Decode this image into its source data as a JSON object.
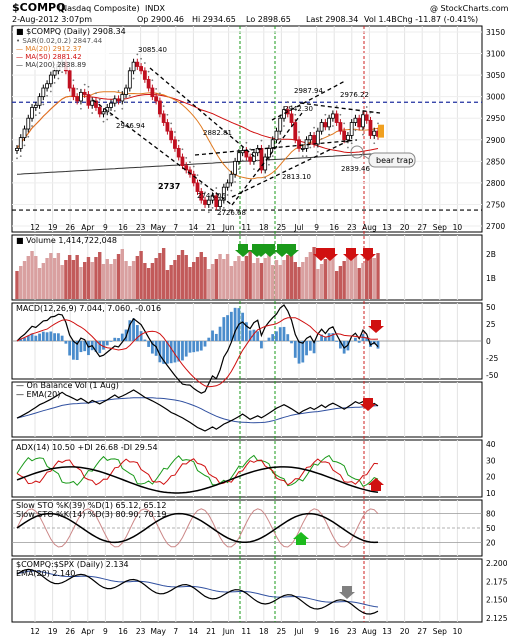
{
  "header": {
    "symbol": "$COMPQ",
    "name": "(Nasdaq Composite)",
    "exchange": "INDX",
    "brand": "@ StockCharts.com",
    "date": "2-Aug-2012 3:07pm",
    "open": "Op 2900.46",
    "high": "Hi 2934.65",
    "low": "Lo 2898.65",
    "last": "Last 2908.34",
    "volume": "Vol 1.4B",
    "change": "Chg -11.87 (-0.41%)",
    "change_color": "#d01010"
  },
  "price_legend": [
    {
      "text": "■ $COMPQ (Daily) 2908.34",
      "color": "#000000"
    },
    {
      "text": "• SAR(0.02,0.2) 2847.44",
      "color": "#555555"
    },
    {
      "text": "— MA(20) 2912.37",
      "color": "#e07a20"
    },
    {
      "text": "— MA(50) 2881.42",
      "color": "#d01010"
    },
    {
      "text": "— MA(200) 2838.89",
      "color": "#333333"
    }
  ],
  "annotations": {
    "peaks": [
      "3085.40",
      "2946.94",
      "2882.81",
      "2737",
      "2744.06",
      "2726.68",
      "2942.30",
      "2987.94",
      "2976.22",
      "2839.46",
      "2813.10"
    ],
    "bear_trap": "bear trap"
  },
  "volume_legend": "■ Volume 1,414,722,048",
  "macd_legend": "MACD(12,26,9) 7.044, 7.060, -0.016",
  "obv_legend": {
    "line1": "— On Balance Vol (1 Aug)",
    "line2": "— EMA(20)"
  },
  "adx_legend": "ADX(14) 10.50 +DI 26.68 -DI 29.54",
  "sto_legend": {
    "line1": "Slow STO %K(39) %D(1) 65.12, 65.12",
    "line2": "Slow STO %K(14) %D(3) 80.90, 70.19"
  },
  "ratio_legend": {
    "line1": "$COMPQ:$SPX (Daily) 2.134",
    "line2": "EMA(20) 2.140"
  },
  "x_axis": {
    "top": [
      "12",
      "19",
      "26",
      "Apr",
      "9",
      "16",
      "23",
      "May",
      "7",
      "14",
      "21",
      "Jun",
      "11",
      "18",
      "25",
      "Jul",
      "9",
      "16",
      "23",
      "Aug",
      "13",
      "20",
      "27",
      "Sep",
      "10"
    ],
    "bottom": [
      "12",
      "19",
      "26",
      "Apr",
      "9",
      "16",
      "23",
      "May",
      "7",
      "14",
      "21",
      "Jun",
      "11",
      "18",
      "25",
      "Jul",
      "9",
      "16",
      "23",
      "Aug",
      "13",
      "20",
      "27",
      "Sep",
      "10"
    ]
  },
  "chart_data": [
    {
      "type": "candlestick",
      "title": "$COMPQ (Daily) 2908.34",
      "ylim": [
        2700,
        3150
      ],
      "y_ticks": [
        "3150",
        "3100",
        "3050",
        "3000",
        "2950",
        "2900",
        "2850",
        "2800",
        "2750",
        "2700"
      ],
      "close": [
        2880,
        2905,
        2925,
        2950,
        2975,
        2980,
        3000,
        3020,
        3030,
        3050,
        3060,
        3075,
        3080,
        3060,
        3020,
        3000,
        2990,
        3010,
        3005,
        2980,
        2990,
        2975,
        2960,
        2965,
        2975,
        2985,
        2995,
        2990,
        3005,
        3020,
        3060,
        3080,
        3070,
        3060,
        3040,
        3020,
        3000,
        2990,
        2960,
        2940,
        2920,
        2900,
        2880,
        2860,
        2840,
        2830,
        2820,
        2800,
        2780,
        2760,
        2750,
        2760,
        2770,
        2745,
        2760,
        2790,
        2800,
        2820,
        2850,
        2870,
        2875,
        2860,
        2850,
        2870,
        2880,
        2830,
        2860,
        2880,
        2900,
        2920,
        2950,
        2970,
        2960,
        2940,
        2900,
        2880,
        2880,
        2900,
        2910,
        2890,
        2920,
        2940,
        2930,
        2950,
        2960,
        2940,
        2920,
        2900,
        2910,
        2940,
        2950,
        2930,
        2958,
        2945,
        2910,
        2920,
        2908
      ]
    },
    {
      "type": "bar",
      "title": "Volume",
      "y_ticks": [
        "2B",
        "1B"
      ]
    },
    {
      "type": "line",
      "title": "MACD(12,26,9)",
      "ylim": [
        -50,
        50
      ],
      "y_ticks": [
        "50",
        "25",
        "0",
        "-25",
        "-50"
      ]
    },
    {
      "type": "line",
      "title": "On Balance Vol"
    },
    {
      "type": "line",
      "title": "ADX(14)",
      "ylim": [
        10,
        40
      ],
      "y_ticks": [
        "40",
        "30",
        "20",
        "10"
      ]
    },
    {
      "type": "line",
      "title": "Slow STO",
      "ylim": [
        0,
        100
      ],
      "y_ticks": [
        "80",
        "50",
        "20"
      ]
    },
    {
      "type": "line",
      "title": "$COMPQ:$SPX (Daily)",
      "ylim": [
        2.125,
        2.2
      ],
      "y_ticks": [
        "2.200",
        "2.175",
        "2.150",
        "2.125"
      ]
    }
  ]
}
